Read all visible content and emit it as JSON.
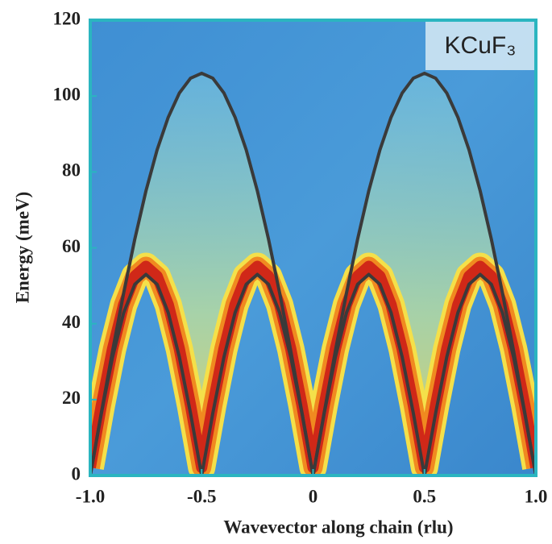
{
  "chart_data": {
    "type": "line",
    "annotation": "KCuF₃",
    "xlabel": "Wavevector along chain (rlu)",
    "ylabel": "Energy (meV)",
    "x": [
      -1,
      -0.95,
      -0.9,
      -0.85,
      -0.8,
      -0.75,
      -0.7,
      -0.65,
      -0.6,
      -0.55,
      -0.5,
      -0.45,
      -0.4,
      -0.35,
      -0.3,
      -0.25,
      -0.2,
      -0.15,
      -0.1,
      -0.05,
      0,
      0.05,
      0.1,
      0.15,
      0.2,
      0.25,
      0.3,
      0.35,
      0.4,
      0.45,
      0.5,
      0.55,
      0.6,
      0.65,
      0.7,
      0.75,
      0.8,
      0.85,
      0.9,
      0.95,
      1
    ],
    "series": [
      {
        "color": "#3a3a3a",
        "values": [
          0,
          16.6,
          32.8,
          48.1,
          62.3,
          75.0,
          85.8,
          94.4,
          100.8,
          104.7,
          106,
          104.7,
          100.8,
          94.4,
          85.8,
          75.0,
          62.3,
          48.1,
          32.8,
          16.6,
          0,
          16.6,
          32.8,
          48.1,
          62.3,
          75.0,
          85.8,
          94.4,
          100.8,
          104.7,
          106,
          104.7,
          100.8,
          94.4,
          85.8,
          75.0,
          62.3,
          48.1,
          32.8,
          16.6,
          0
        ]
      },
      {
        "color": "#3a3a3a",
        "values": [
          0,
          16.4,
          31.2,
          42.9,
          50.4,
          53,
          50.4,
          42.9,
          31.2,
          16.4,
          0,
          16.4,
          31.2,
          42.9,
          50.4,
          53,
          50.4,
          42.9,
          31.2,
          16.4,
          0,
          16.4,
          31.2,
          42.9,
          50.4,
          53,
          50.4,
          42.9,
          31.2,
          16.4,
          0,
          16.4,
          31.2,
          42.9,
          50.4,
          53,
          50.4,
          42.9,
          31.2,
          16.4,
          0
        ]
      }
    ],
    "xlim": [
      -1,
      1
    ],
    "xticks": [
      {
        "value": -1,
        "label": "-1.0"
      },
      -0.5,
      0,
      0.5,
      {
        "value": 1,
        "label": "1.0"
      }
    ],
    "ylim": [
      0,
      120
    ],
    "yticks": [
      0,
      20,
      40,
      60,
      80,
      100,
      120
    ]
  }
}
